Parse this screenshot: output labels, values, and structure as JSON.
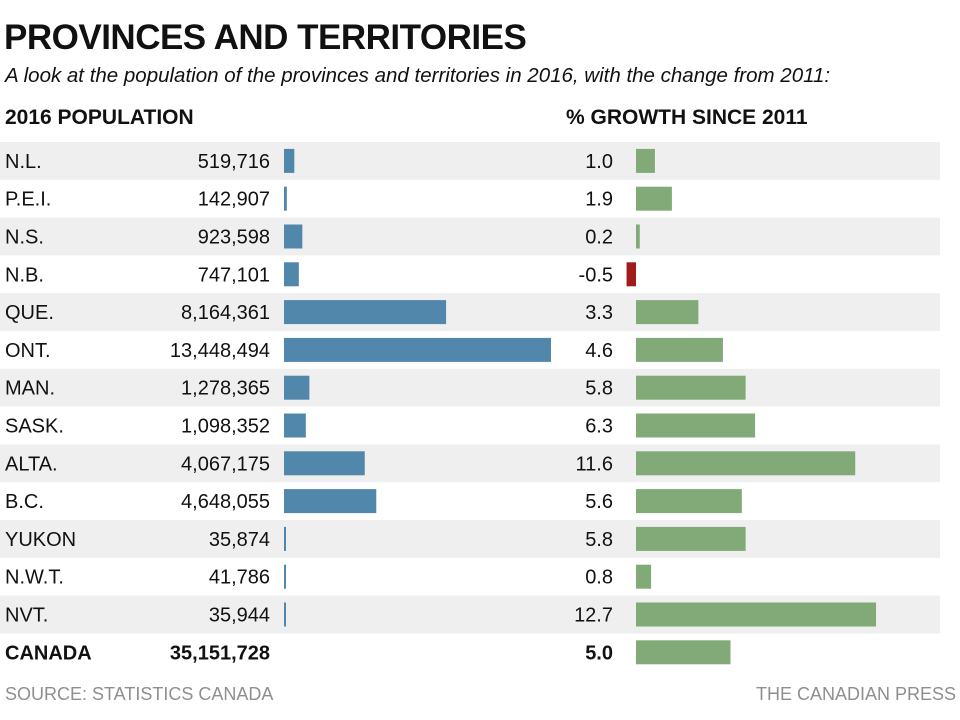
{
  "title": "PROVINCES AND TERRITORIES",
  "subtitle": "A look at the population of the provinces and territories in 2016, with the change from 2011:",
  "headers": {
    "population": "2016 POPULATION",
    "growth": "% GROWTH SINCE 2011"
  },
  "footer": {
    "source": "SOURCE: STATISTICS CANADA",
    "credit": "THE CANADIAN PRESS"
  },
  "colors": {
    "population_bar": "#5187aa",
    "growth_positive": "#82aa78",
    "growth_negative": "#a01b1b",
    "row_band": "#efefef"
  },
  "chart_data": {
    "type": "bar",
    "categories": [
      "N.L.",
      "P.E.I.",
      "N.S.",
      "N.B.",
      "QUE.",
      "ONT.",
      "MAN.",
      "SASK.",
      "ALTA.",
      "B.C.",
      "YUKON",
      "N.W.T.",
      "NVT."
    ],
    "series": [
      {
        "values": [
          519716,
          142907,
          923598,
          747101,
          8164361,
          13448494,
          1278365,
          1098352,
          4067175,
          4648055,
          35874,
          41786,
          35944
        ],
        "labels": [
          "519,716",
          "142,907",
          "923,598",
          "747,101",
          "8,164,361",
          "13,448,494",
          "1,278,365",
          "1,098,352",
          "4,067,175",
          "4,648,055",
          "35,874",
          "41,786",
          "35,944"
        ]
      },
      {
        "values": [
          1.0,
          1.9,
          0.2,
          -0.5,
          3.3,
          4.6,
          5.8,
          6.3,
          11.6,
          5.6,
          5.8,
          0.8,
          12.7
        ],
        "labels": [
          "1.0",
          "1.9",
          "0.2",
          "-0.5",
          "3.3",
          "4.6",
          "5.8",
          "6.3",
          "11.6",
          "5.6",
          "5.8",
          "0.8",
          "12.7"
        ]
      }
    ],
    "total": {
      "category": "CANADA",
      "population": 35151728,
      "population_label": "35,151,728",
      "growth": 5.0,
      "growth_label": "5.0"
    }
  }
}
